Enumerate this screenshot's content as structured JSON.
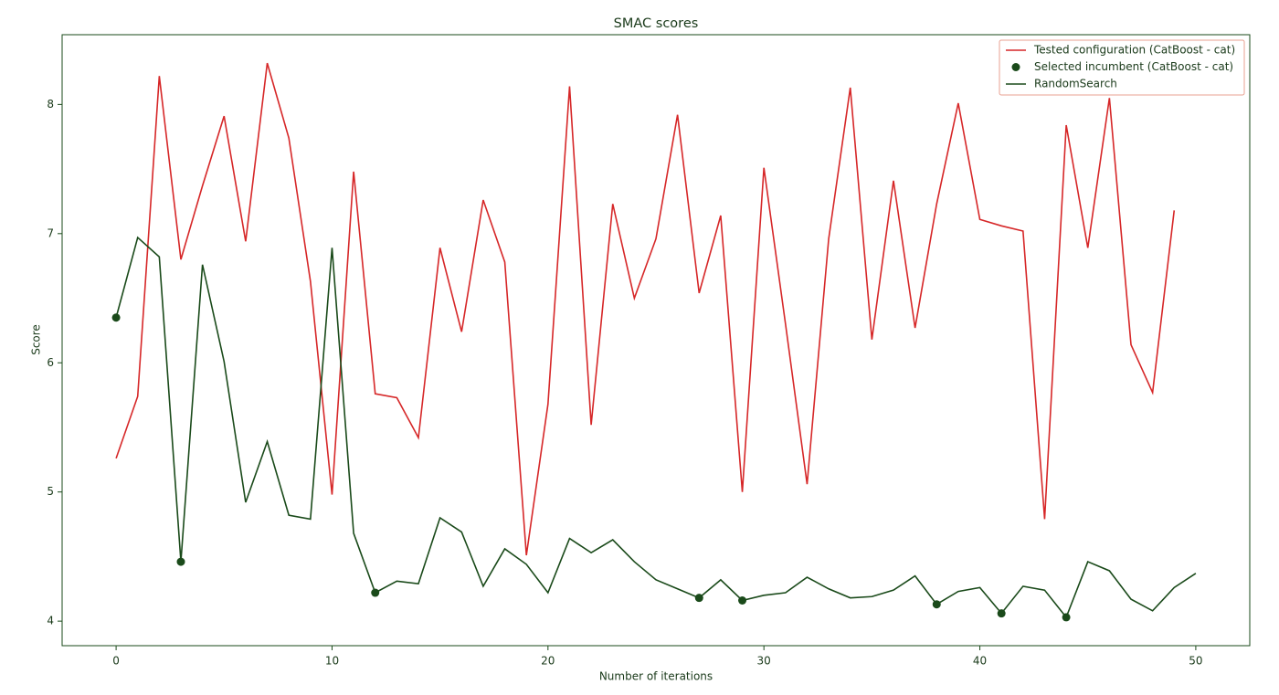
{
  "chart_data": {
    "type": "line",
    "title": "SMAC scores",
    "xlabel": "Number of iterations",
    "ylabel": "Score",
    "xlim": [
      -2.5,
      52.5
    ],
    "ylim": [
      3.81,
      8.54
    ],
    "xticks": [
      0,
      10,
      20,
      30,
      40,
      50
    ],
    "yticks": [
      4,
      5,
      6,
      7,
      8
    ],
    "grid": false,
    "legend": "upper right",
    "series": [
      {
        "name": "Tested configuration (CatBoost - cat)",
        "type": "line",
        "color": "#d62728",
        "x": [
          0,
          1,
          2,
          3,
          4,
          5,
          6,
          7,
          8,
          9,
          10,
          11,
          12,
          13,
          14,
          15,
          16,
          17,
          18,
          19,
          20,
          21,
          22,
          23,
          24,
          25,
          26,
          27,
          28,
          29,
          30,
          31,
          32,
          33,
          34,
          35,
          36,
          37,
          38,
          39,
          40,
          41,
          42,
          43,
          44,
          45,
          46,
          47,
          48,
          49
        ],
        "values": [
          5.26,
          5.74,
          8.22,
          6.8,
          7.37,
          7.91,
          6.94,
          8.32,
          7.74,
          6.63,
          4.98,
          7.48,
          5.76,
          5.73,
          5.42,
          6.89,
          6.24,
          7.26,
          6.78,
          4.51,
          5.68,
          8.14,
          5.52,
          7.23,
          6.5,
          6.96,
          7.92,
          6.54,
          7.14,
          5.0,
          7.51,
          6.3,
          5.06,
          6.96,
          8.13,
          6.18,
          7.41,
          6.27,
          7.23,
          8.01,
          7.11,
          7.06,
          7.02,
          4.79,
          7.84,
          6.89,
          8.05,
          6.14,
          5.77,
          7.18
        ]
      },
      {
        "name": "Selected incumbent (CatBoost - cat)",
        "type": "scatter",
        "color": "#1a4a1a",
        "x": [
          0,
          3,
          12,
          27,
          29,
          38,
          41,
          44
        ],
        "values": [
          6.35,
          4.46,
          4.22,
          4.18,
          4.16,
          4.13,
          4.06,
          4.03
        ]
      },
      {
        "name": "RandomSearch",
        "type": "line",
        "color": "#1a4a1a",
        "x": [
          0,
          1,
          2,
          3,
          4,
          5,
          6,
          7,
          8,
          9,
          10,
          11,
          12,
          13,
          14,
          15,
          16,
          17,
          18,
          19,
          20,
          21,
          22,
          23,
          24,
          25,
          26,
          27,
          28,
          29,
          30,
          31,
          32,
          33,
          34,
          35,
          36,
          37,
          38,
          39,
          40,
          41,
          42,
          43,
          44,
          45,
          46,
          47,
          48,
          49,
          50
        ],
        "values": [
          6.35,
          6.97,
          6.82,
          4.46,
          6.76,
          6.01,
          4.92,
          5.39,
          4.82,
          4.79,
          6.89,
          4.68,
          4.22,
          4.31,
          4.29,
          4.8,
          4.69,
          4.27,
          4.56,
          4.44,
          4.22,
          4.64,
          4.53,
          4.63,
          4.46,
          4.32,
          4.25,
          4.18,
          4.32,
          4.16,
          4.2,
          4.22,
          4.34,
          4.25,
          4.18,
          4.19,
          4.24,
          4.35,
          4.13,
          4.23,
          4.26,
          4.06,
          4.27,
          4.24,
          4.03,
          4.46,
          4.39,
          4.17,
          4.08,
          4.26,
          4.37
        ]
      }
    ]
  }
}
